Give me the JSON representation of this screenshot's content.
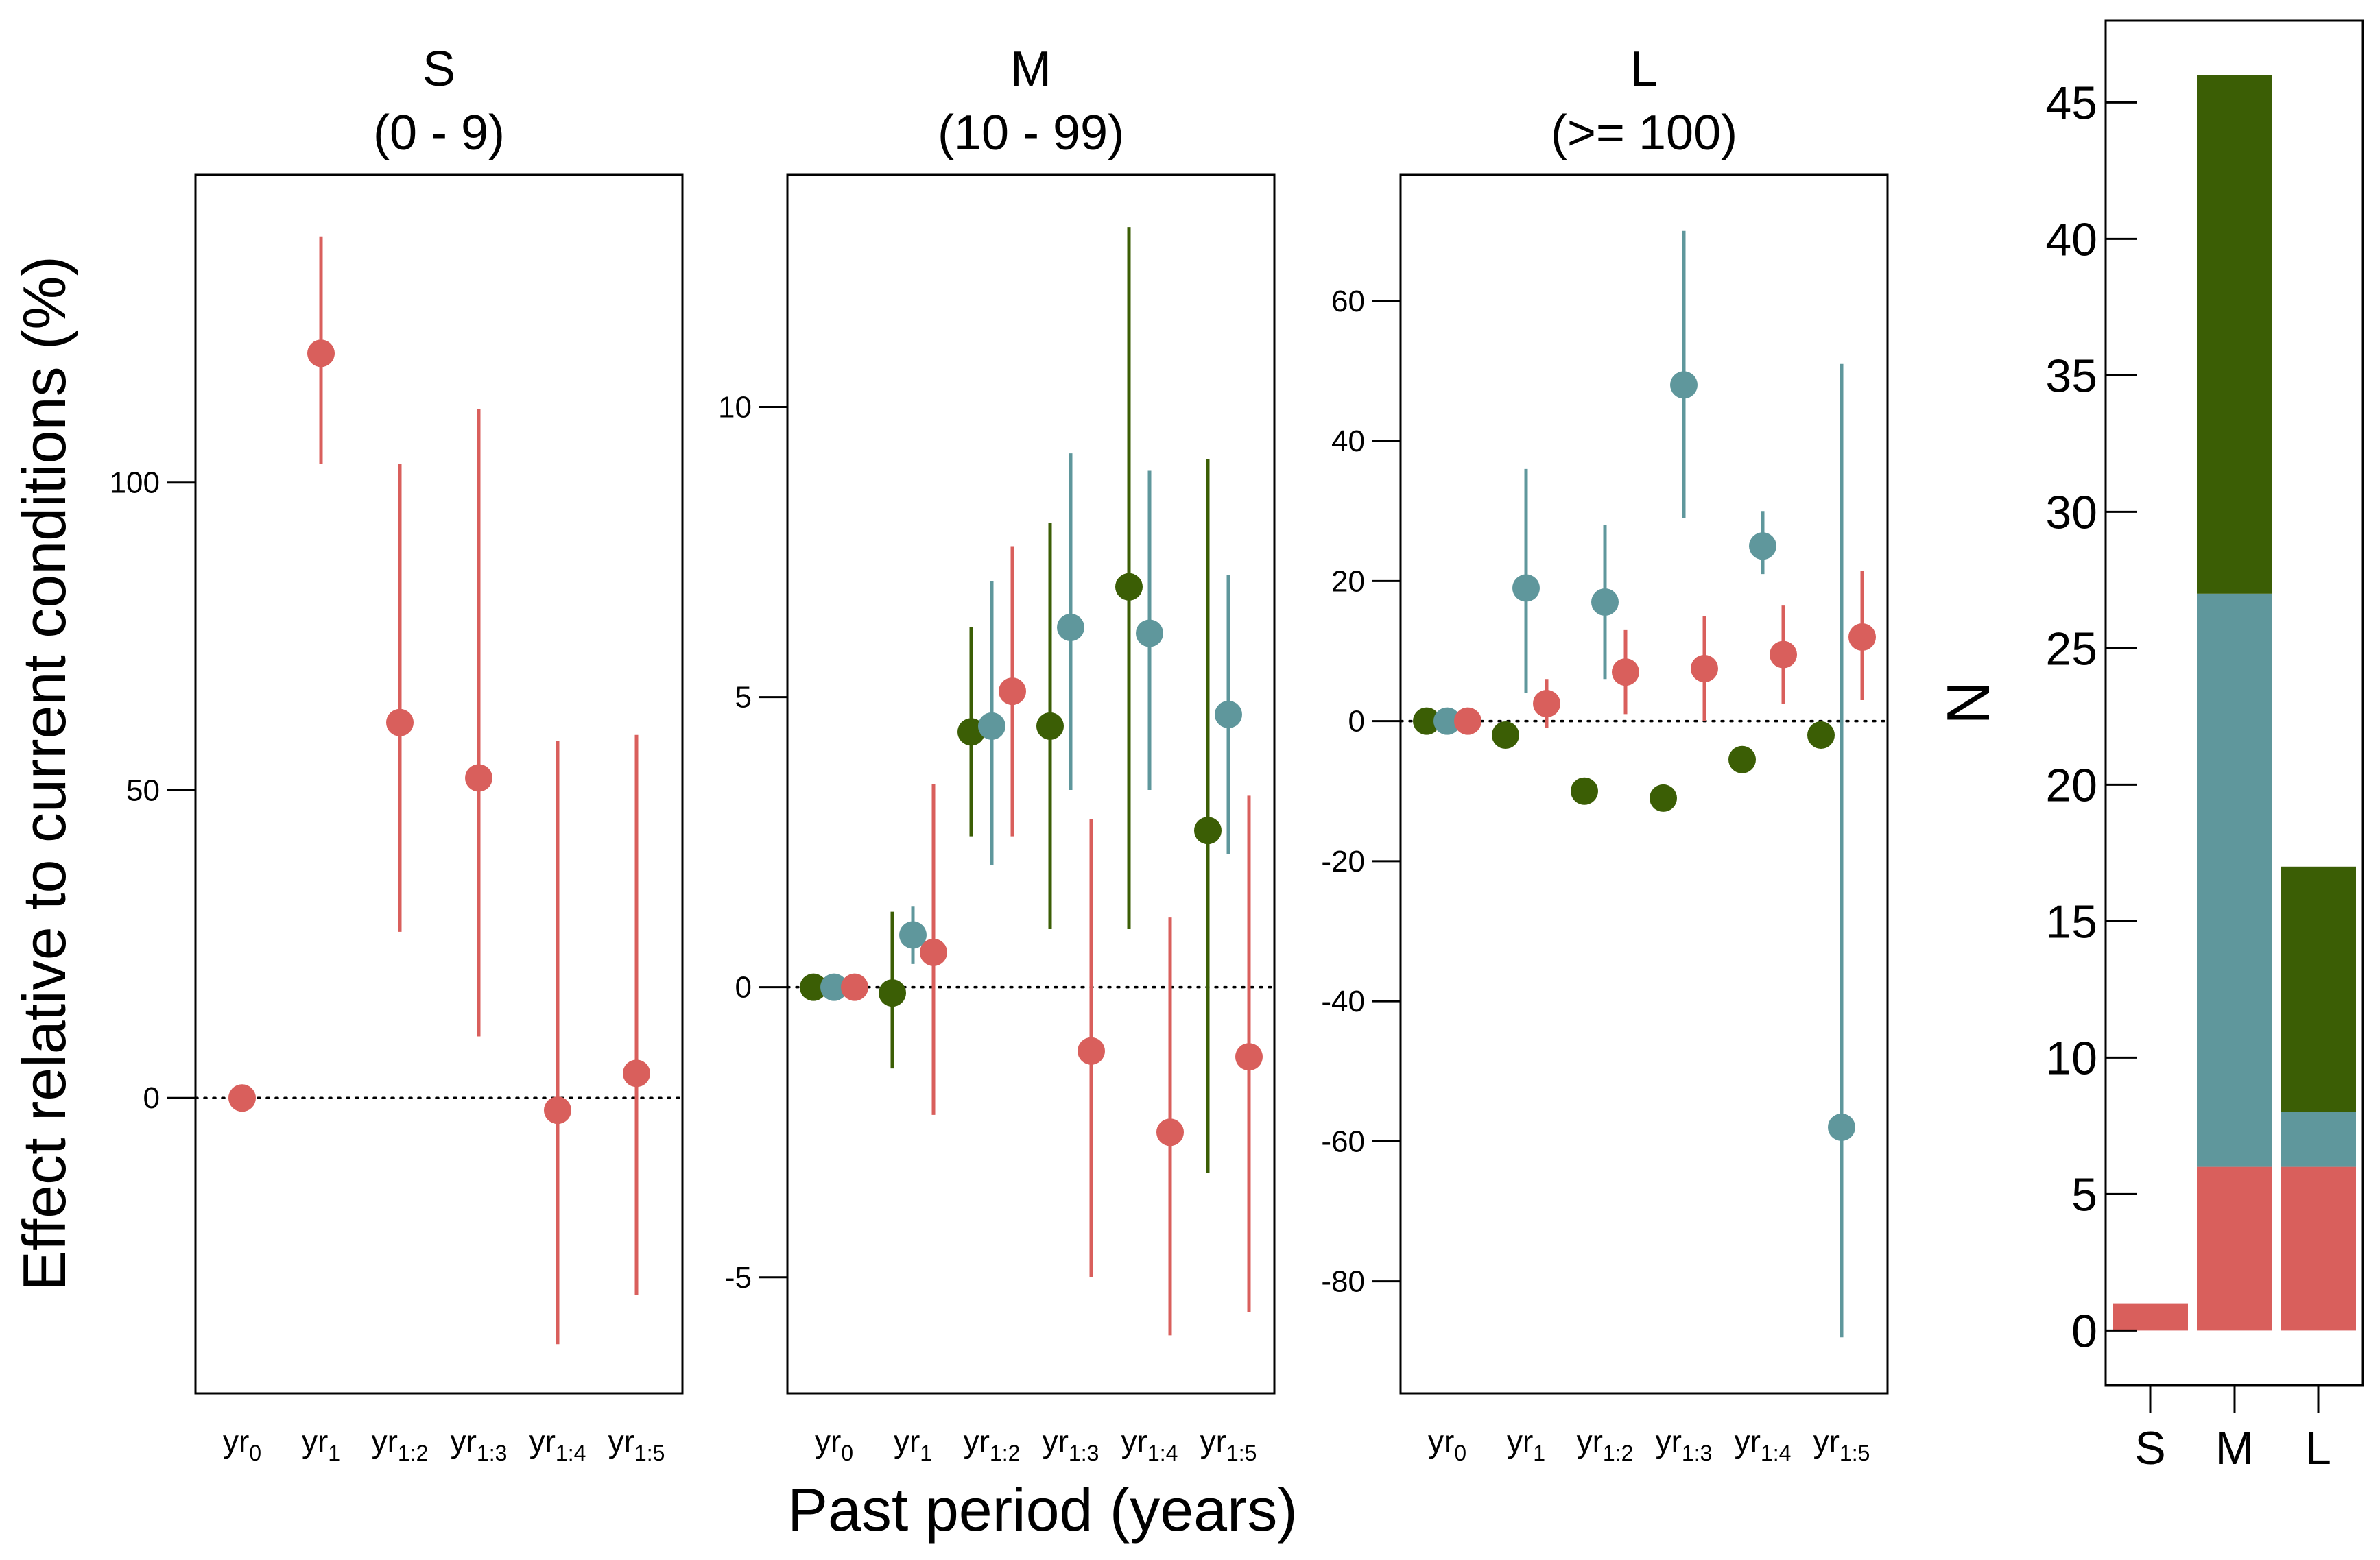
{
  "colors": {
    "green": "#3b5e05",
    "teal": "#5f979c",
    "red": "#d95f5c"
  },
  "ylabel": "Effect relative to current conditions (%)",
  "xlabel": "Past period (years)",
  "categories": [
    {
      "base": "yr",
      "sub": "0"
    },
    {
      "base": "yr",
      "sub": "1"
    },
    {
      "base": "yr",
      "sub": "1:2"
    },
    {
      "base": "yr",
      "sub": "1:3"
    },
    {
      "base": "yr",
      "sub": "1:4"
    },
    {
      "base": "yr",
      "sub": "1:5"
    }
  ],
  "chart_data": [
    {
      "type": "scatter",
      "panel": "S",
      "title": "S",
      "subtitle": "(0 - 9)",
      "ylim": [
        -48,
        150
      ],
      "yticks": [
        0,
        50,
        100
      ],
      "series": [
        {
          "color": "red",
          "offset": 0,
          "points": [
            {
              "y": 0
            },
            {
              "y": 121,
              "lo": 103,
              "hi": 140
            },
            {
              "y": 61,
              "lo": 27,
              "hi": 103
            },
            {
              "y": 52,
              "lo": 10,
              "hi": 112
            },
            {
              "y": -2,
              "lo": -40,
              "hi": 58
            },
            {
              "y": 4,
              "lo": -32,
              "hi": 59
            }
          ]
        }
      ]
    },
    {
      "type": "scatter",
      "panel": "M",
      "title": "M",
      "subtitle": "(10 - 99)",
      "ylim": [
        -7,
        14
      ],
      "yticks": [
        -5,
        0,
        5,
        10
      ],
      "series": [
        {
          "color": "green",
          "offset": -0.25,
          "points": [
            {
              "y": 0
            },
            {
              "y": -0.1,
              "lo": -1.4,
              "hi": 1.3
            },
            {
              "y": 4.4,
              "lo": 2.6,
              "hi": 6.2
            },
            {
              "y": 4.5,
              "lo": 1.0,
              "hi": 8.0
            },
            {
              "y": 6.9,
              "lo": 1.0,
              "hi": 13.1
            },
            {
              "y": 2.7,
              "lo": -3.2,
              "hi": 9.1
            }
          ]
        },
        {
          "color": "teal",
          "offset": 0,
          "points": [
            {
              "y": 0
            },
            {
              "y": 0.9,
              "lo": 0.4,
              "hi": 1.4
            },
            {
              "y": 4.5,
              "lo": 2.1,
              "hi": 7.0
            },
            {
              "y": 6.2,
              "lo": 3.4,
              "hi": 9.2
            },
            {
              "y": 6.1,
              "lo": 3.4,
              "hi": 8.9
            },
            {
              "y": 4.7,
              "lo": 2.3,
              "hi": 7.1
            }
          ]
        },
        {
          "color": "red",
          "offset": 0.25,
          "points": [
            {
              "y": 0
            },
            {
              "y": 0.6,
              "lo": -2.2,
              "hi": 3.5
            },
            {
              "y": 5.1,
              "lo": 2.6,
              "hi": 7.6
            },
            {
              "y": -1.1,
              "lo": -5.0,
              "hi": 2.9
            },
            {
              "y": -2.5,
              "lo": -6.0,
              "hi": 1.2
            },
            {
              "y": -1.2,
              "lo": -5.6,
              "hi": 3.3
            }
          ]
        }
      ]
    },
    {
      "type": "scatter",
      "panel": "L",
      "title": "L",
      "subtitle": "(>= 100)",
      "ylim": [
        -96,
        78
      ],
      "yticks": [
        -80,
        -60,
        -40,
        -20,
        0,
        20,
        40,
        60
      ],
      "series": [
        {
          "color": "green",
          "offset": -0.25,
          "points": [
            {
              "y": 0
            },
            {
              "y": -2
            },
            {
              "y": -10
            },
            {
              "y": -11
            },
            {
              "y": -5.5
            },
            {
              "y": -2
            }
          ]
        },
        {
          "color": "teal",
          "offset": 0,
          "points": [
            {
              "y": 0
            },
            {
              "y": 19,
              "lo": 4,
              "hi": 36
            },
            {
              "y": 17,
              "lo": 6,
              "hi": 28
            },
            {
              "y": 48,
              "lo": 29,
              "hi": 70
            },
            {
              "y": 25,
              "lo": 21,
              "hi": 30
            },
            {
              "y": -58,
              "lo": -88,
              "hi": 51
            }
          ]
        },
        {
          "color": "red",
          "offset": 0.25,
          "points": [
            {
              "y": 0
            },
            {
              "y": 2.5,
              "lo": -1,
              "hi": 6
            },
            {
              "y": 7,
              "lo": 1,
              "hi": 13
            },
            {
              "y": 7.5,
              "lo": 0,
              "hi": 15
            },
            {
              "y": 9.5,
              "lo": 2.5,
              "hi": 16.5
            },
            {
              "y": 12,
              "lo": 3,
              "hi": 21.5
            }
          ]
        }
      ]
    },
    {
      "type": "bar",
      "stacked": true,
      "ylabel": "N",
      "categories": [
        "S",
        "M",
        "L"
      ],
      "ylim": [
        -2,
        48
      ],
      "yticks": [
        0,
        5,
        10,
        15,
        20,
        25,
        30,
        35,
        40,
        45
      ],
      "series": [
        {
          "color": "red",
          "values": [
            1,
            6,
            6
          ]
        },
        {
          "color": "teal",
          "values": [
            0,
            21,
            2
          ]
        },
        {
          "color": "green",
          "values": [
            0,
            19,
            9
          ]
        }
      ]
    }
  ]
}
